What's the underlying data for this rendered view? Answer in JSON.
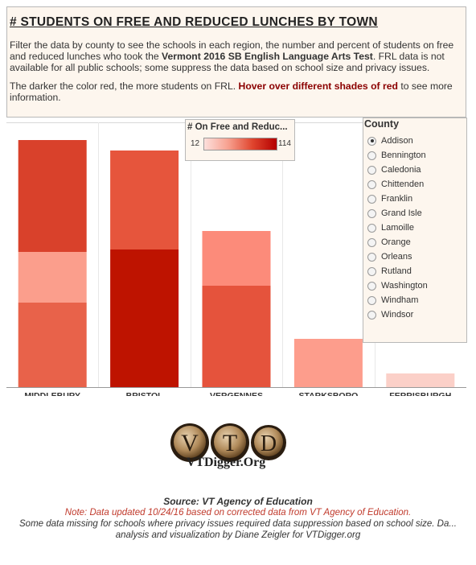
{
  "header": {
    "title": "# STUDENTS ON FREE AND REDUCED LUNCHES BY TOWN",
    "p1_a": "Filter the data by county to see the schools in each region, the number and percent of students on free and reduced lunches who took the ",
    "p1_bold": "Vermont 2016 SB English Language Arts Test",
    "p1_b": ". FRL data is not available for all public schools; some suppress the data based on school size and privacy issues.",
    "p2_a": "The darker the color red, the more students on FRL. ",
    "p2_hl": "Hover over different shades of red",
    "p2_b": " to see more information."
  },
  "legend": {
    "title": "# On Free and Reduc...",
    "min": "12",
    "max": "114"
  },
  "county": {
    "title": "County",
    "options": [
      "Addison",
      "Bennington",
      "Caledonia",
      "Chittenden",
      "Franklin",
      "Grand Isle",
      "Lamoille",
      "Orange",
      "Orleans",
      "Rutland",
      "Washington",
      "Windham",
      "Windsor"
    ],
    "selected": "Addison"
  },
  "chart_data": {
    "type": "bar",
    "stacked": true,
    "categories": [
      "MIDDLEBURY",
      "BRISTOL",
      "VERGENNES",
      "STARKSBORO",
      "FERRISBURGH"
    ],
    "stacks": [
      [
        {
          "value": 105,
          "color": "#e8624a"
        },
        {
          "value": 63,
          "color": "#fb9e8c"
        },
        {
          "value": 139,
          "color": "#d9412b"
        }
      ],
      [
        {
          "value": 171,
          "color": "#be1300"
        },
        {
          "value": 123,
          "color": "#e6553c"
        }
      ],
      [
        {
          "value": 126,
          "color": "#e5533c"
        },
        {
          "value": 68,
          "color": "#fc8b7a"
        }
      ],
      [
        {
          "value": 60,
          "color": "#fd9d8c"
        }
      ],
      [
        {
          "value": 17,
          "color": "#fbd0c8"
        }
      ]
    ],
    "ylim": [
      0,
      325
    ]
  },
  "logo": {
    "letters": [
      "V",
      "T",
      "D"
    ],
    "text": "VTDigger.Org"
  },
  "footer": {
    "source": "Source: VT Agency of Education",
    "note_label": "Note: ",
    "note_text": "Data updated 10/24/16 based on corrected data from VT Agency of Education.",
    "line3": "Some data missing for schools where privacy issues required data suppression based on school size. Da...",
    "line4": "analysis and visualization by Diane Zeigler for VTDigger.org"
  }
}
